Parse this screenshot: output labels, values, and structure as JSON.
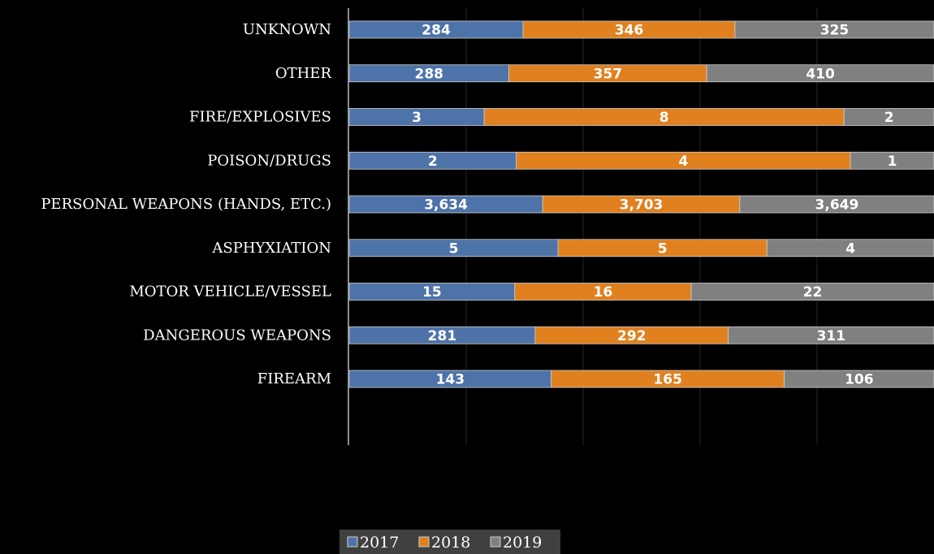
{
  "chart_data": {
    "type": "bar",
    "orientation": "horizontal",
    "stacked": "percent",
    "categories": [
      "UNKNOWN",
      "OTHER",
      "FIRE/EXPLOSIVES",
      "POISON/DRUGS",
      "PERSONAL WEAPONS (HANDS, ETC.)",
      "ASPHYXIATION",
      "MOTOR VEHICLE/VESSEL",
      "DANGEROUS WEAPONS",
      "FIREARM"
    ],
    "series": [
      {
        "name": "2017",
        "color": "#4e73a8",
        "values": [
          284,
          288,
          3,
          2,
          3634,
          5,
          15,
          281,
          143
        ],
        "labels": [
          "284",
          "288",
          "3",
          "2",
          "3,634",
          "5",
          "15",
          "281",
          "143"
        ]
      },
      {
        "name": "2018",
        "color": "#e0801f",
        "values": [
          346,
          357,
          8,
          4,
          3703,
          5,
          16,
          292,
          165
        ],
        "labels": [
          "346",
          "357",
          "8",
          "4",
          "3,703",
          "5",
          "16",
          "292",
          "165"
        ]
      },
      {
        "name": "2019",
        "color": "#808080",
        "values": [
          325,
          410,
          2,
          1,
          3649,
          4,
          22,
          311,
          106
        ],
        "labels": [
          "325",
          "410",
          "2",
          "1",
          "3,649",
          "4",
          "22",
          "311",
          "106"
        ]
      }
    ],
    "xlim": [
      0,
      1
    ],
    "grid": true,
    "legend_position": "bottom",
    "background": "#000000",
    "text_color": "#ffffff",
    "legend_background": "#404040"
  }
}
